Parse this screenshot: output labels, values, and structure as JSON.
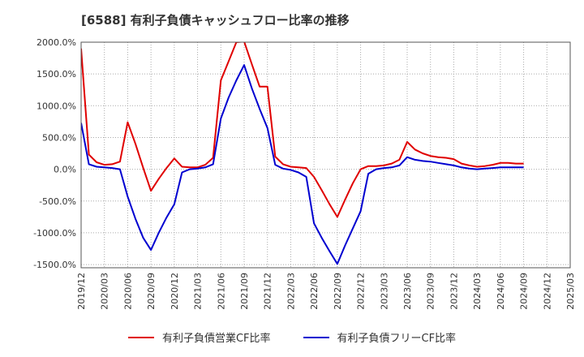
{
  "chart_data": {
    "type": "line",
    "title": "[6588]  有利子負債キャッシュフロー比率の推移",
    "xlabel": "",
    "ylabel": "",
    "ylim": [
      -1550,
      2000
    ],
    "yticks": [
      -1500,
      -1000,
      -500,
      0,
      500,
      1000,
      1500,
      2000
    ],
    "ytick_labels": [
      "-1500.0%",
      "-1000.0%",
      "-500.0%",
      "0.0%",
      "500.0%",
      "1000.0%",
      "1500.0%",
      "2000.0%"
    ],
    "xlim": [
      "2019/12",
      "2025/03"
    ],
    "xtick_labels": [
      "2019/12",
      "2020/03",
      "2020/06",
      "2020/09",
      "2020/12",
      "2021/03",
      "2021/06",
      "2021/09",
      "2021/12",
      "2022/03",
      "2022/06",
      "2022/09",
      "2022/12",
      "2023/03",
      "2023/06",
      "2023/09",
      "2023/12",
      "2024/03",
      "2024/06",
      "2024/09",
      "2024/12",
      "2025/03"
    ],
    "grid": true,
    "legend_position": "bottom",
    "x": [
      "2019/12",
      "2020/01",
      "2020/02",
      "2020/03",
      "2020/04",
      "2020/05",
      "2020/06",
      "2020/07",
      "2020/08",
      "2020/09",
      "2020/10",
      "2020/11",
      "2020/12",
      "2021/01",
      "2021/02",
      "2021/03",
      "2021/04",
      "2021/05",
      "2021/06",
      "2021/07",
      "2021/08",
      "2021/09",
      "2021/10",
      "2021/11",
      "2021/12",
      "2022/01",
      "2022/02",
      "2022/03",
      "2022/04",
      "2022/05",
      "2022/06",
      "2022/07",
      "2022/08",
      "2022/09",
      "2022/10",
      "2022/11",
      "2022/12",
      "2023/01",
      "2023/02",
      "2023/03",
      "2023/04",
      "2023/05",
      "2023/06",
      "2023/07",
      "2023/08",
      "2023/09",
      "2023/10",
      "2023/11",
      "2023/12",
      "2024/01",
      "2024/02",
      "2024/03",
      "2024/04",
      "2024/05",
      "2024/06",
      "2024/07",
      "2024/08",
      "2024/09"
    ],
    "series": [
      {
        "name": "有利子負債営業CF比率",
        "color": "#e00000",
        "values": [
          1900,
          230,
          110,
          70,
          80,
          120,
          740,
          400,
          20,
          -340,
          -150,
          20,
          170,
          40,
          30,
          30,
          70,
          180,
          1400,
          1700,
          2000,
          2010,
          1650,
          1300,
          1300,
          200,
          80,
          40,
          30,
          20,
          -120,
          -330,
          -550,
          -750,
          -480,
          -220,
          0,
          50,
          50,
          60,
          90,
          150,
          430,
          310,
          250,
          210,
          190,
          180,
          160,
          90,
          60,
          40,
          50,
          70,
          100,
          100,
          90,
          90
        ],
        "smooth_points": []
      },
      {
        "name": "有利子負債フリーCF比率",
        "color": "#0000d0",
        "values": [
          730,
          80,
          40,
          30,
          20,
          0,
          -430,
          -780,
          -1080,
          -1270,
          -1000,
          -760,
          -550,
          -50,
          0,
          10,
          30,
          80,
          800,
          1130,
          1400,
          1640,
          1270,
          950,
          650,
          70,
          10,
          -10,
          -50,
          -120,
          -850,
          -1080,
          -1290,
          -1490,
          -1200,
          -930,
          -660,
          -70,
          0,
          20,
          30,
          60,
          190,
          150,
          130,
          120,
          100,
          80,
          60,
          30,
          10,
          0,
          10,
          20,
          30,
          30,
          30,
          30
        ]
      }
    ]
  }
}
